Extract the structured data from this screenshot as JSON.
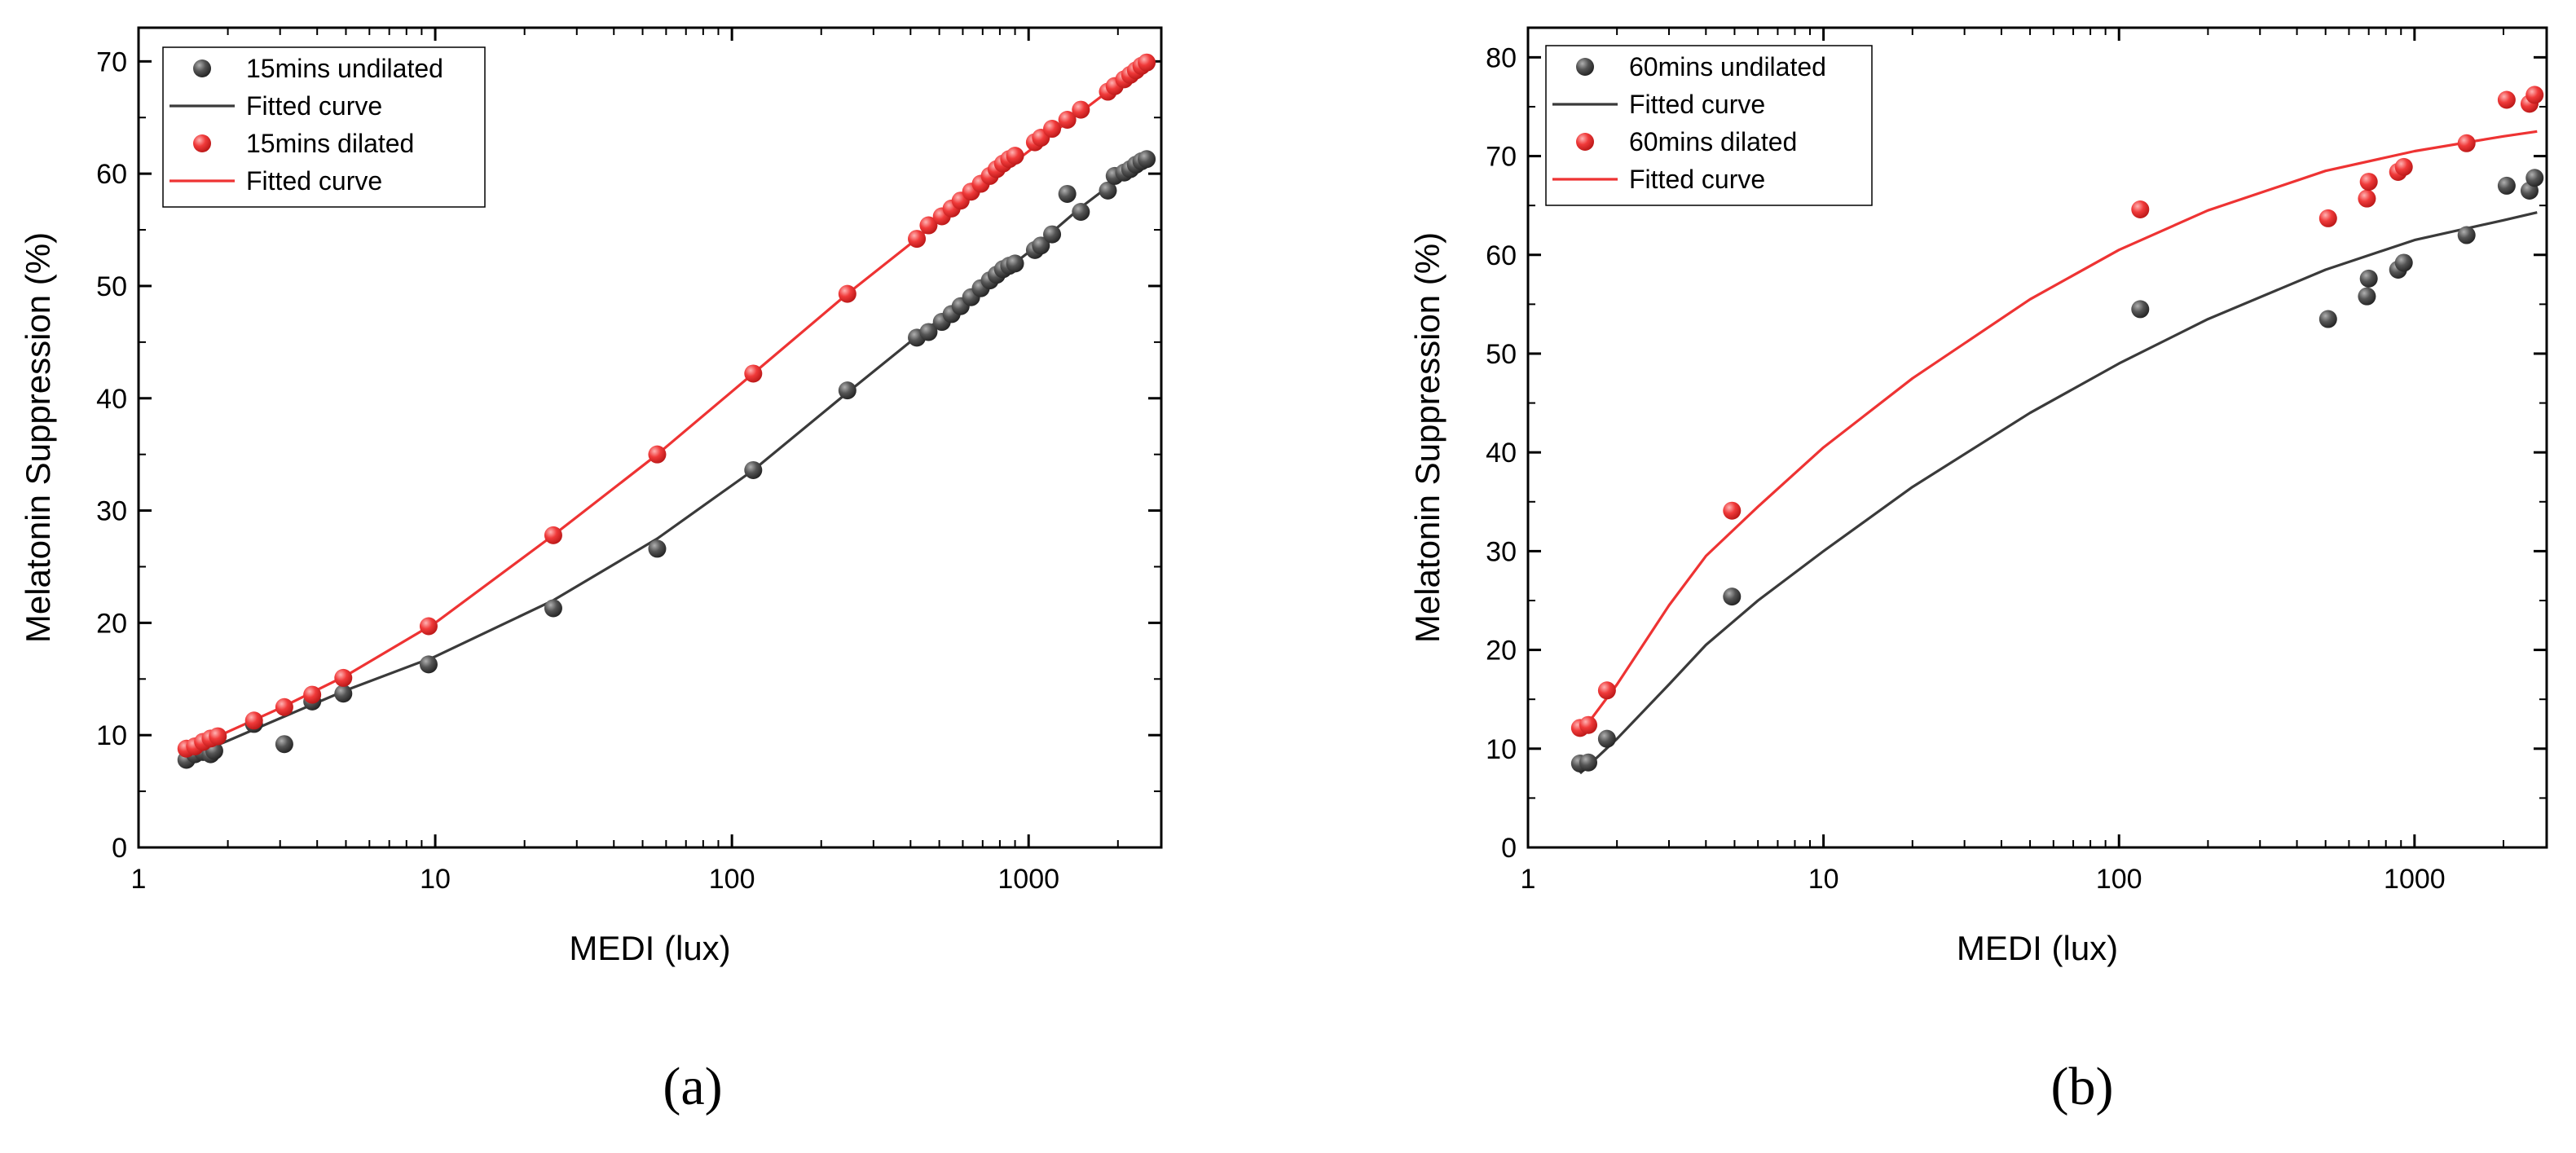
{
  "chart_data": [
    {
      "panel_label": "(a)",
      "type": "scatter",
      "xscale": "log",
      "xlim": [
        1,
        2800
      ],
      "ylim": [
        0,
        73
      ],
      "xticks": [
        1,
        10,
        100,
        1000
      ],
      "xtick_labels": [
        "1",
        "10",
        "100",
        "1000"
      ],
      "yticks": [
        0,
        10,
        20,
        30,
        40,
        50,
        60,
        70
      ],
      "ytick_labels": [
        "0",
        "10",
        "20",
        "30",
        "40",
        "50",
        "60",
        "70"
      ],
      "xlabel": "MEDI (lux)",
      "ylabel": "Melatonin Suppression (%)",
      "legend_position": "top-left",
      "legend": [
        "15mins undilated",
        "Fitted curve",
        "15mins dilated",
        "Fitted curve"
      ],
      "series": [
        {
          "name": "15mins undilated",
          "kind": "points",
          "color": "#3a3a3a",
          "x": [
            1.45,
            1.55,
            1.65,
            1.75,
            1.8,
            2.45,
            3.1,
            3.85,
            4.9,
            9.5,
            25,
            56,
            118,
            245,
            420,
            460,
            510,
            550,
            590,
            640,
            690,
            740,
            780,
            820,
            860,
            900,
            1050,
            1100,
            1200,
            1350,
            1500,
            1850,
            1950,
            2100,
            2200,
            2300,
            2400,
            2500
          ],
          "y": [
            7.8,
            8.3,
            8.5,
            8.3,
            8.6,
            11.0,
            9.2,
            13.0,
            13.7,
            16.3,
            21.3,
            26.6,
            33.6,
            40.7,
            45.4,
            45.9,
            46.8,
            47.5,
            48.2,
            49.0,
            49.8,
            50.5,
            51.0,
            51.5,
            51.8,
            52.0,
            53.2,
            53.6,
            54.6,
            58.2,
            56.6,
            58.5,
            59.8,
            60.1,
            60.4,
            60.8,
            61.1,
            61.3
          ]
        },
        {
          "name": "Fitted curve",
          "kind": "line",
          "color": "#3a3a3a",
          "x": [
            1.45,
            2,
            3,
            5,
            10,
            25,
            56,
            118,
            245,
            420,
            600,
            1000,
            1500,
            2000,
            2600
          ],
          "y": [
            8.0,
            9.5,
            11.5,
            14.0,
            17.0,
            22.0,
            27.5,
            33.6,
            40.5,
            45.5,
            48.5,
            53.0,
            57.0,
            59.5,
            61.5
          ]
        },
        {
          "name": "15mins dilated",
          "kind": "points",
          "color": "#ee3333",
          "x": [
            1.45,
            1.55,
            1.65,
            1.75,
            1.85,
            2.45,
            3.1,
            3.85,
            4.9,
            9.5,
            25,
            56,
            118,
            245,
            420,
            460,
            510,
            550,
            590,
            640,
            690,
            740,
            780,
            820,
            860,
            900,
            1050,
            1100,
            1200,
            1350,
            1500,
            1850,
            1950,
            2100,
            2200,
            2300,
            2400,
            2500
          ],
          "y": [
            8.8,
            9.0,
            9.4,
            9.7,
            9.9,
            11.3,
            12.5,
            13.6,
            15.1,
            19.7,
            27.8,
            35.0,
            42.2,
            49.3,
            54.2,
            55.4,
            56.2,
            56.9,
            57.6,
            58.4,
            59.1,
            59.8,
            60.4,
            60.9,
            61.3,
            61.6,
            62.8,
            63.2,
            64.0,
            64.8,
            65.7,
            67.3,
            67.8,
            68.4,
            68.8,
            69.2,
            69.6,
            69.9
          ]
        },
        {
          "name": "Fitted curve",
          "kind": "line",
          "color": "#ee3333",
          "x": [
            1.45,
            2,
            3,
            5,
            10,
            25,
            56,
            118,
            245,
            420,
            600,
            1000,
            1500,
            2000,
            2600
          ],
          "y": [
            8.5,
            10.3,
            12.4,
            15.3,
            20.0,
            27.8,
            35.0,
            42.2,
            49.3,
            54.2,
            57.5,
            62.0,
            65.5,
            68.0,
            70.0
          ]
        }
      ]
    },
    {
      "panel_label": "(b)",
      "type": "scatter",
      "xscale": "log",
      "xlim": [
        1,
        2800
      ],
      "ylim": [
        0,
        83
      ],
      "xticks": [
        1,
        10,
        100,
        1000
      ],
      "xtick_labels": [
        "1",
        "10",
        "100",
        "1000"
      ],
      "yticks": [
        0,
        10,
        20,
        30,
        40,
        50,
        60,
        70,
        80
      ],
      "ytick_labels": [
        "0",
        "10",
        "20",
        "30",
        "40",
        "50",
        "60",
        "70",
        "80"
      ],
      "xlabel": "MEDI (lux)",
      "ylabel": "Melatonin Suppression (%)",
      "legend_position": "top-left",
      "legend": [
        "60mins undilated",
        "Fitted curve",
        "60mins dilated",
        "Fitted curve"
      ],
      "series": [
        {
          "name": "60mins undilated",
          "kind": "points",
          "color": "#3a3a3a",
          "x": [
            1.5,
            1.6,
            1.85,
            4.9,
            118,
            510,
            690,
            700,
            880,
            920,
            1500,
            2050,
            2450,
            2550
          ],
          "y": [
            8.5,
            8.6,
            11.0,
            25.4,
            54.5,
            53.5,
            55.8,
            57.6,
            58.5,
            59.2,
            62.0,
            67.0,
            66.5,
            67.8
          ]
        },
        {
          "name": "Fitted curve",
          "kind": "line",
          "color": "#3a3a3a",
          "x": [
            1.5,
            2,
            3,
            4,
            6,
            10,
            20,
            50,
            100,
            200,
            500,
            1000,
            2000,
            2600
          ],
          "y": [
            7.5,
            11.0,
            16.5,
            20.5,
            25.0,
            30.0,
            36.5,
            44.0,
            49.0,
            53.5,
            58.5,
            61.5,
            63.5,
            64.3
          ]
        },
        {
          "name": "60mins dilated",
          "kind": "points",
          "color": "#ee3333",
          "x": [
            1.5,
            1.6,
            1.85,
            4.9,
            118,
            510,
            690,
            700,
            880,
            920,
            1500,
            2050,
            2450,
            2550
          ],
          "y": [
            12.1,
            12.4,
            15.9,
            34.1,
            64.6,
            63.7,
            65.7,
            67.4,
            68.4,
            68.9,
            71.3,
            75.7,
            75.3,
            76.2
          ]
        },
        {
          "name": "Fitted curve",
          "kind": "line",
          "color": "#ee3333",
          "x": [
            1.5,
            2,
            3,
            4,
            6,
            10,
            20,
            50,
            100,
            200,
            500,
            1000,
            2000,
            2600
          ],
          "y": [
            11.5,
            16.5,
            24.5,
            29.5,
            34.5,
            40.5,
            47.5,
            55.5,
            60.5,
            64.5,
            68.5,
            70.5,
            72.0,
            72.5
          ]
        }
      ]
    }
  ]
}
